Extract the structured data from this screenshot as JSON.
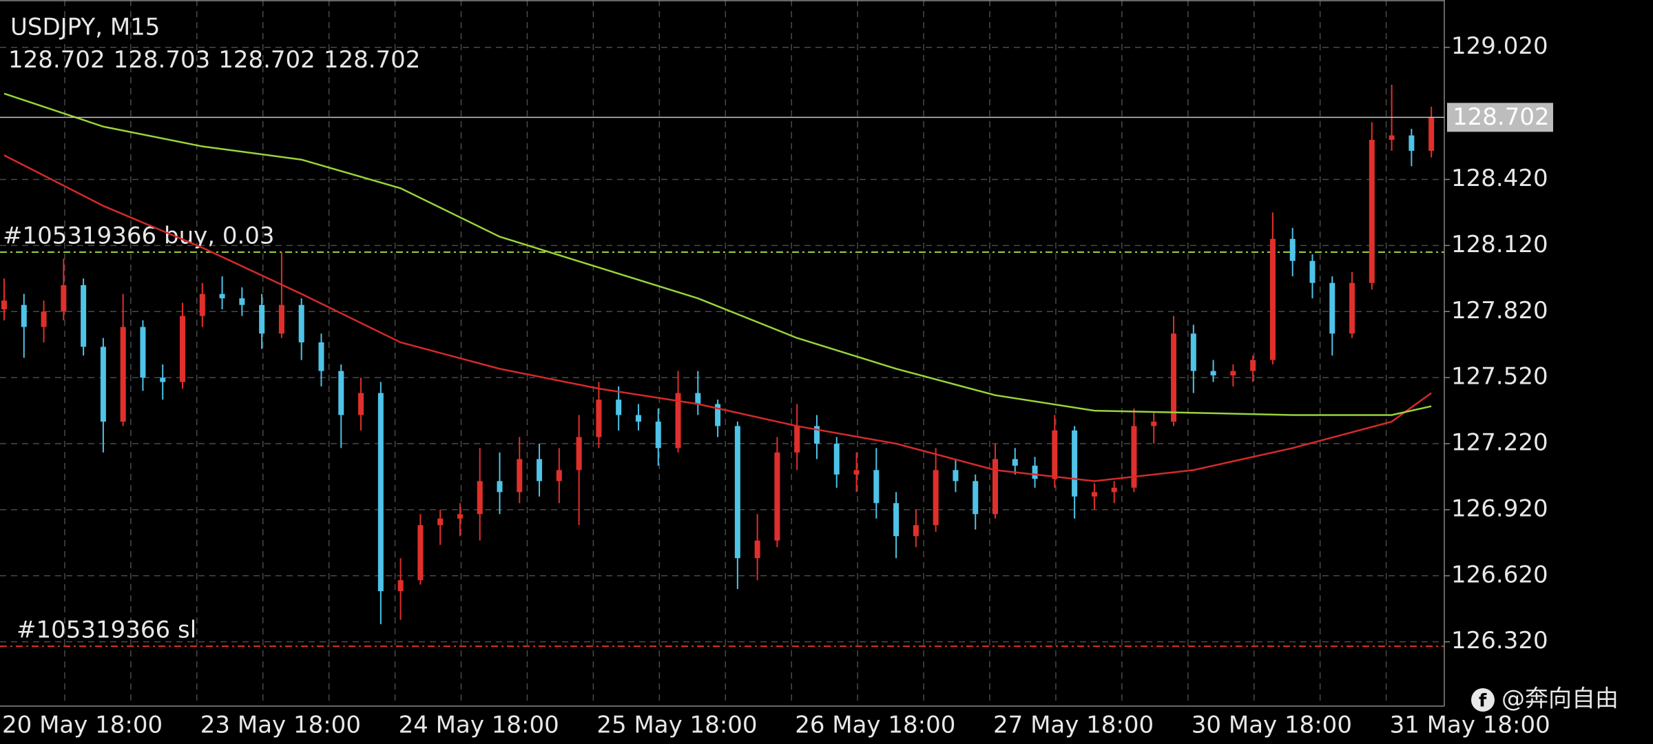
{
  "chart_data": {
    "type": "candlestick",
    "title": "USDJPY, M15",
    "current_ohlc": [
      128.702,
      128.703,
      128.702,
      128.702
    ],
    "categories": [
      "20 May 18:00",
      null,
      null,
      null,
      null,
      null,
      null,
      null,
      null,
      null,
      "23 May 18:00",
      null,
      null,
      null,
      null,
      null,
      null,
      null,
      null,
      null,
      "24 May 18:00",
      null,
      null,
      null,
      null,
      null,
      null,
      null,
      null,
      null,
      "25 May 18:00",
      null,
      null,
      null,
      null,
      null,
      null,
      null,
      null,
      null,
      "26 May 18:00",
      null,
      null,
      null,
      null,
      null,
      null,
      null,
      null,
      null,
      "27 May 18:00",
      null,
      null,
      null,
      null,
      null,
      null,
      null,
      null,
      null,
      "30 May 18:00",
      null,
      null,
      null,
      null,
      null,
      null,
      null,
      null,
      null,
      "31 May 18:00",
      null,
      null
    ],
    "open": [
      127.83,
      127.85,
      127.75,
      127.82,
      127.94,
      127.66,
      127.32,
      127.75,
      127.52,
      127.5,
      127.8,
      127.9,
      127.88,
      127.85,
      127.72,
      127.85,
      127.68,
      127.55,
      127.35,
      127.45,
      126.55,
      126.6,
      126.85,
      126.88,
      126.9,
      127.05,
      127.0,
      127.15,
      127.05,
      127.1,
      127.25,
      127.42,
      127.35,
      127.32,
      127.2,
      127.45,
      127.4,
      127.3,
      126.7,
      126.78,
      127.18,
      127.3,
      127.22,
      127.08,
      127.1,
      126.95,
      126.8,
      126.85,
      127.1,
      127.05,
      126.9,
      127.15,
      127.12,
      127.06,
      127.28,
      126.98,
      127.0,
      127.02,
      127.3,
      127.32,
      127.72,
      127.55,
      127.53,
      127.55,
      127.6,
      128.15,
      128.05,
      127.95,
      127.72,
      127.95,
      128.6,
      128.62,
      128.55
    ],
    "high": [
      127.97,
      127.9,
      127.87,
      128.06,
      127.97,
      127.7,
      127.9,
      127.78,
      127.58,
      127.86,
      127.95,
      127.98,
      127.93,
      127.9,
      128.09,
      127.88,
      127.72,
      127.58,
      127.52,
      127.5,
      126.7,
      126.9,
      126.92,
      126.95,
      127.2,
      127.18,
      127.25,
      127.22,
      127.2,
      127.35,
      127.5,
      127.48,
      127.4,
      127.38,
      127.55,
      127.55,
      127.42,
      127.32,
      126.9,
      127.25,
      127.4,
      127.35,
      127.25,
      127.18,
      127.2,
      127.0,
      126.92,
      127.2,
      127.15,
      127.08,
      127.22,
      127.2,
      127.16,
      127.35,
      127.3,
      127.04,
      127.05,
      127.38,
      127.36,
      127.8,
      127.76,
      127.6,
      127.58,
      127.62,
      128.27,
      128.2,
      128.08,
      127.98,
      128.0,
      128.68,
      128.85,
      128.65,
      128.75
    ],
    "low": [
      127.78,
      127.61,
      127.68,
      127.78,
      127.62,
      127.18,
      127.3,
      127.46,
      127.42,
      127.47,
      127.75,
      127.83,
      127.8,
      127.65,
      127.7,
      127.6,
      127.48,
      127.2,
      127.28,
      126.4,
      126.42,
      126.58,
      126.76,
      126.8,
      126.78,
      126.9,
      126.95,
      126.98,
      126.95,
      126.85,
      127.2,
      127.28,
      127.28,
      127.12,
      127.18,
      127.35,
      127.25,
      126.56,
      126.6,
      126.75,
      127.1,
      127.15,
      127.02,
      127.0,
      126.88,
      126.7,
      126.75,
      126.82,
      127.0,
      126.83,
      126.88,
      127.08,
      127.02,
      127.02,
      126.88,
      126.92,
      126.95,
      127.0,
      127.22,
      127.3,
      127.45,
      127.5,
      127.48,
      127.5,
      127.58,
      127.98,
      127.88,
      127.62,
      127.7,
      127.92,
      128.55,
      128.48,
      128.52
    ],
    "close": [
      127.87,
      127.75,
      127.82,
      127.94,
      127.66,
      127.32,
      127.75,
      127.52,
      127.5,
      127.8,
      127.9,
      127.88,
      127.85,
      127.72,
      127.85,
      127.68,
      127.55,
      127.35,
      127.45,
      126.55,
      126.6,
      126.85,
      126.88,
      126.9,
      127.05,
      127.0,
      127.15,
      127.05,
      127.1,
      127.25,
      127.42,
      127.35,
      127.32,
      127.2,
      127.45,
      127.4,
      127.3,
      126.7,
      126.78,
      127.18,
      127.3,
      127.22,
      127.08,
      127.1,
      126.95,
      126.8,
      126.85,
      127.1,
      127.05,
      126.9,
      127.15,
      127.12,
      127.06,
      127.28,
      126.98,
      127.0,
      127.02,
      127.3,
      127.32,
      127.72,
      127.55,
      127.53,
      127.55,
      127.6,
      128.15,
      128.05,
      127.95,
      127.72,
      127.95,
      128.6,
      128.62,
      128.55,
      128.7
    ],
    "up_color": "#e0302c",
    "down_color": "#4fc3e8",
    "lines": [
      {
        "color": "#d62a2a",
        "x": [
          0,
          5,
          10,
          15,
          20,
          25,
          30,
          35,
          40,
          45,
          50,
          55,
          60,
          65,
          70,
          72
        ],
        "values": [
          128.53,
          128.3,
          128.11,
          127.9,
          127.68,
          127.56,
          127.47,
          127.4,
          127.3,
          127.22,
          127.1,
          127.05,
          127.1,
          127.2,
          127.32,
          127.45
        ]
      },
      {
        "color": "#9ad43a",
        "x": [
          0,
          5,
          10,
          15,
          20,
          25,
          30,
          35,
          40,
          45,
          50,
          55,
          60,
          65,
          70,
          72
        ],
        "values": [
          128.81,
          128.66,
          128.57,
          128.51,
          128.38,
          128.16,
          128.02,
          127.88,
          127.7,
          127.56,
          127.44,
          127.37,
          127.36,
          127.35,
          127.35,
          127.39
        ]
      }
    ],
    "ylim": [
      126.028,
      129.235
    ],
    "yticks": [
      {
        "value": 129.02,
        "label": "129.020"
      },
      {
        "value": 128.42,
        "label": "128.420"
      },
      {
        "value": 128.12,
        "label": "128.120"
      },
      {
        "value": 127.82,
        "label": "127.820"
      },
      {
        "value": 127.52,
        "label": "127.520"
      },
      {
        "value": 127.22,
        "label": "127.220"
      },
      {
        "value": 126.92,
        "label": "126.920"
      },
      {
        "value": 126.62,
        "label": "126.620"
      },
      {
        "value": 126.32,
        "label": "126.320"
      }
    ],
    "grid": true,
    "last_price": 128.702,
    "levels": [
      {
        "label": "#105319366 buy, 0.03",
        "value": 128.09,
        "color": "#9ad43a"
      },
      {
        "label": "#105319366 sl",
        "value": 126.3,
        "color": "#e0302c"
      }
    ]
  },
  "watermark": "@奔向自由"
}
